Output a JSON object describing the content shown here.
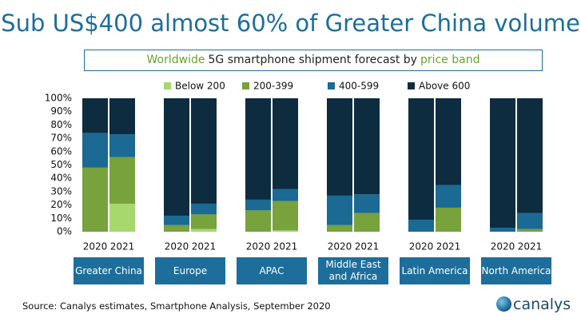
{
  "chart_data": {
    "type": "stacked_bar",
    "title": "Sub US$400 almost 60% of Greater China volume",
    "subtitle_parts": [
      "Worldwide",
      "5G smartphone shipment forecast by",
      "price band"
    ],
    "categories": [
      "2020",
      "2021",
      "2020",
      "2021",
      "2020",
      "2021",
      "2020",
      "2021",
      "2020",
      "2021",
      "2020",
      "2021"
    ],
    "groups": [
      "Greater China",
      "Europe",
      "APAC",
      "Middle East\nand Africa",
      "Latin America",
      "North America"
    ],
    "series": [
      {
        "name": "Below 200",
        "color": "#a6d86e",
        "values": [
          0,
          21,
          0,
          2,
          0,
          1,
          0,
          0,
          0,
          0,
          0,
          0
        ]
      },
      {
        "name": "200-399",
        "color": "#77a23c",
        "values": [
          48,
          35,
          5,
          11,
          16,
          22,
          5,
          14,
          0,
          18,
          0,
          2
        ]
      },
      {
        "name": "400-599",
        "color": "#1a6a93",
        "values": [
          26,
          17,
          7,
          8,
          8,
          9,
          22,
          14,
          9,
          17,
          3,
          12
        ]
      },
      {
        "name": "Above 600",
        "color": "#0d2c40",
        "values": [
          26,
          27,
          88,
          79,
          76,
          68,
          73,
          72,
          91,
          65,
          97,
          86
        ]
      }
    ],
    "ylim": [
      0,
      100
    ],
    "yticks": [
      {
        "value": 0,
        "label": "0%"
      },
      {
        "value": 10,
        "label": "10%"
      },
      {
        "value": 20,
        "label": "20%"
      },
      {
        "value": 30,
        "label": "30%"
      },
      {
        "value": 40,
        "label": "40%"
      },
      {
        "value": 50,
        "label": "50%"
      },
      {
        "value": 60,
        "label": "60%"
      },
      {
        "value": 70,
        "label": "70%"
      },
      {
        "value": 80,
        "label": "80%"
      },
      {
        "value": 90,
        "label": "90%"
      },
      {
        "value": 100,
        "label": "100%"
      }
    ],
    "grid": false,
    "legend": "top",
    "source": "Source: Canalys estimates, Smartphone Analysis, September 2020",
    "brand": "canalys"
  }
}
